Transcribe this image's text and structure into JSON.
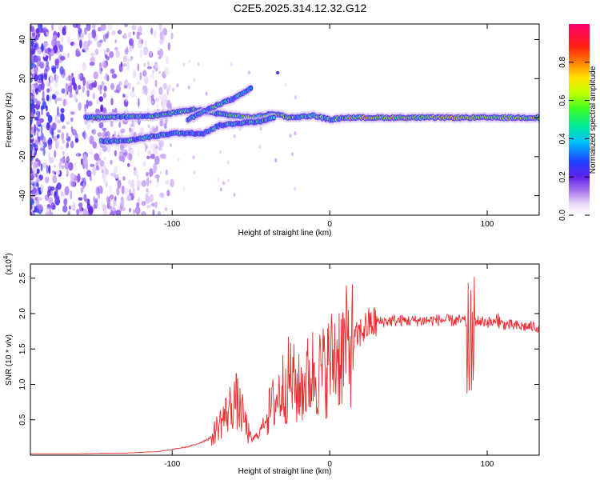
{
  "title": "C2E5.2025.314.12.32.G12",
  "chart_data": [
    {
      "type": "heatmap",
      "xlabel": "Height of straight line (km)",
      "ylabel": "Frequency (Hz)",
      "xlim": [
        -190,
        133
      ],
      "ylim": [
        -50,
        48
      ],
      "xticks": [
        -100,
        0,
        100
      ],
      "xtick_labels": [
        "-100",
        "0",
        "100"
      ],
      "yticks": [
        -40,
        -20,
        0,
        20,
        40
      ],
      "ytick_labels": [
        "-40",
        "-20",
        "0",
        "20",
        "40"
      ],
      "colorbar": {
        "label": "Normalized spectral amplitude",
        "range": [
          0,
          1
        ],
        "ticks": [
          0.0,
          0.2,
          0.4,
          0.6,
          0.8
        ],
        "tick_labels": [
          "0.0",
          "0.2",
          "0.4",
          "0.6",
          "0.8"
        ]
      },
      "ridges": [
        {
          "name": "main",
          "points": [
            [
              -155,
              0
            ],
            [
              -130,
              0.5
            ],
            [
              -110,
              1
            ],
            [
              -95,
              3
            ],
            [
              -85,
              4
            ],
            [
              -70,
              2
            ],
            [
              -50,
              0
            ],
            [
              -35,
              2
            ],
            [
              -25,
              0
            ],
            [
              -10,
              1
            ],
            [
              0,
              -1
            ],
            [
              10,
              0
            ],
            [
              40,
              0
            ],
            [
              80,
              0
            ],
            [
              100,
              0
            ],
            [
              133,
              0
            ]
          ]
        },
        {
          "name": "upper",
          "points": [
            [
              -90,
              -1
            ],
            [
              -80,
              3
            ],
            [
              -70,
              7
            ],
            [
              -60,
              10
            ],
            [
              -50,
              15
            ]
          ]
        },
        {
          "name": "lower",
          "points": [
            [
              -145,
              -12
            ],
            [
              -130,
              -12
            ],
            [
              -100,
              -8
            ],
            [
              -90,
              -8
            ],
            [
              -80,
              -8
            ],
            [
              -70,
              -4
            ],
            [
              -60,
              -3
            ],
            [
              -45,
              -2
            ],
            [
              -35,
              0
            ]
          ]
        }
      ]
    },
    {
      "type": "line",
      "xlabel": "Height of straight line (km)",
      "ylabel": "SNR (10 * v/v)",
      "y_multiplier": "(x10",
      "y_multiplier_exp": "4",
      "y_multiplier_close": ")",
      "xlim": [
        -190,
        133
      ],
      "ylim": [
        0,
        2.7
      ],
      "xticks": [
        -100,
        0,
        100
      ],
      "xtick_labels": [
        "-100",
        "0",
        "100"
      ],
      "yticks": [
        0.5,
        1.0,
        1.5,
        2.0,
        2.5
      ],
      "ytick_labels": [
        "0.5",
        "1.0",
        "1.5",
        "2.0",
        "2.5"
      ],
      "series_color": "#e83030",
      "envelope": [
        [
          -190,
          0.02
        ],
        [
          -160,
          0.02
        ],
        [
          -140,
          0.03
        ],
        [
          -130,
          0.03
        ],
        [
          -120,
          0.04
        ],
        [
          -110,
          0.05
        ],
        [
          -100,
          0.08
        ],
        [
          -90,
          0.12
        ],
        [
          -85,
          0.15
        ],
        [
          -80,
          0.2
        ],
        [
          -75,
          0.25
        ],
        [
          -70,
          0.45
        ],
        [
          -65,
          0.6
        ],
        [
          -60,
          0.8
        ],
        [
          -55,
          0.55
        ],
        [
          -50,
          0.2
        ],
        [
          -45,
          0.3
        ],
        [
          -40,
          0.55
        ],
        [
          -35,
          0.75
        ],
        [
          -30,
          0.95
        ],
        [
          -25,
          1.1
        ],
        [
          -20,
          0.9
        ],
        [
          -15,
          1.05
        ],
        [
          -10,
          1.2
        ],
        [
          -5,
          1.15
        ],
        [
          0,
          1.3
        ],
        [
          5,
          1.45
        ],
        [
          10,
          1.5
        ],
        [
          15,
          1.6
        ],
        [
          20,
          1.75
        ],
        [
          25,
          1.85
        ],
        [
          30,
          1.88
        ],
        [
          40,
          1.9
        ],
        [
          50,
          1.9
        ],
        [
          60,
          1.9
        ],
        [
          70,
          1.91
        ],
        [
          80,
          1.9
        ],
        [
          85,
          1.9
        ],
        [
          88,
          1.85
        ],
        [
          92,
          1.9
        ],
        [
          100,
          1.88
        ],
        [
          110,
          1.85
        ],
        [
          120,
          1.82
        ],
        [
          133,
          1.81
        ]
      ]
    }
  ]
}
